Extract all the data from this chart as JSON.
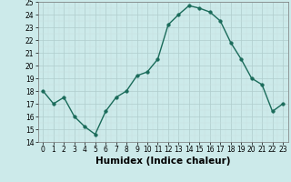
{
  "x": [
    0,
    1,
    2,
    3,
    4,
    5,
    6,
    7,
    8,
    9,
    10,
    11,
    12,
    13,
    14,
    15,
    16,
    17,
    18,
    19,
    20,
    21,
    22,
    23
  ],
  "y": [
    18,
    17,
    17.5,
    16,
    15.2,
    14.6,
    16.4,
    17.5,
    18,
    19.2,
    19.5,
    20.5,
    23.2,
    24,
    24.7,
    24.5,
    24.2,
    23.5,
    21.8,
    20.5,
    19,
    18.5,
    16.4,
    17
  ],
  "line_color": "#1a6b5a",
  "marker": "o",
  "marker_size": 2.5,
  "linewidth": 1.0,
  "bg_color": "#cceaea",
  "grid_color_major": "#b0cdcd",
  "grid_color_minor": "#c8e0e0",
  "xlabel": "Humidex (Indice chaleur)",
  "ylim": [
    14,
    25
  ],
  "xlim": [
    -0.5,
    23.5
  ],
  "yticks": [
    14,
    15,
    16,
    17,
    18,
    19,
    20,
    21,
    22,
    23,
    24,
    25
  ],
  "xtick_labels": [
    "0",
    "1",
    "2",
    "3",
    "4",
    "5",
    "6",
    "7",
    "8",
    "9",
    "10",
    "11",
    "12",
    "13",
    "14",
    "15",
    "16",
    "17",
    "18",
    "19",
    "20",
    "21",
    "22",
    "23"
  ],
  "tick_fontsize": 5.5,
  "xlabel_fontsize": 7.5,
  "xlabel_fontweight": "bold"
}
